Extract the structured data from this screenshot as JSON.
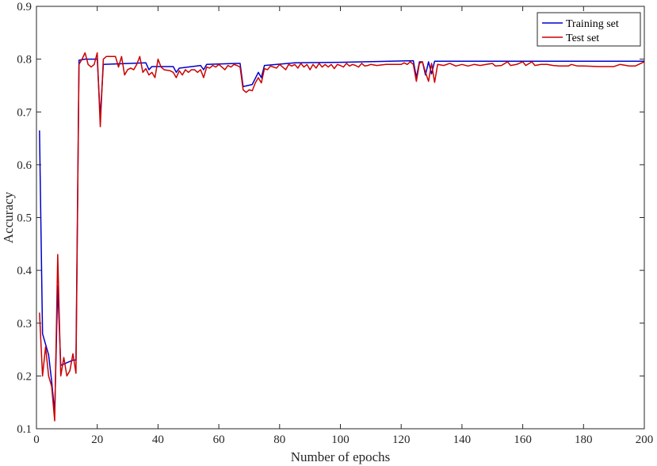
{
  "chart_data": {
    "type": "line",
    "xlabel": "Number of epochs",
    "ylabel": "Accuracy",
    "xlim": [
      0,
      200
    ],
    "ylim": [
      0.1,
      0.9
    ],
    "xticks": [
      0,
      20,
      40,
      60,
      80,
      100,
      120,
      140,
      160,
      180,
      200
    ],
    "yticks": [
      0.1,
      0.2,
      0.3,
      0.4,
      0.5,
      0.6,
      0.7,
      0.8,
      0.9
    ],
    "grid": false,
    "legend_position": "top-right",
    "series": [
      {
        "name": "Training set",
        "color": "#0000cc",
        "points": [
          [
            1,
            0.665
          ],
          [
            2,
            0.28
          ],
          [
            3,
            0.26
          ],
          [
            4,
            0.24
          ],
          [
            5,
            0.19
          ],
          [
            6,
            0.13
          ],
          [
            7,
            0.37
          ],
          [
            8,
            0.22
          ],
          [
            10,
            0.225
          ],
          [
            12,
            0.23
          ],
          [
            13,
            0.23
          ],
          [
            14,
            0.798
          ],
          [
            16,
            0.8
          ],
          [
            20,
            0.8
          ],
          [
            21,
            0.69
          ],
          [
            22,
            0.79
          ],
          [
            36,
            0.793
          ],
          [
            37,
            0.78
          ],
          [
            38,
            0.786
          ],
          [
            45,
            0.786
          ],
          [
            46,
            0.775
          ],
          [
            47,
            0.783
          ],
          [
            54,
            0.788
          ],
          [
            55,
            0.78
          ],
          [
            56,
            0.79
          ],
          [
            66,
            0.792
          ],
          [
            67,
            0.792
          ],
          [
            68,
            0.748
          ],
          [
            71,
            0.752
          ],
          [
            73,
            0.775
          ],
          [
            74,
            0.765
          ],
          [
            75,
            0.788
          ],
          [
            85,
            0.793
          ],
          [
            100,
            0.794
          ],
          [
            124,
            0.797
          ],
          [
            125,
            0.765
          ],
          [
            126,
            0.795
          ],
          [
            127,
            0.795
          ],
          [
            128,
            0.77
          ],
          [
            129,
            0.795
          ],
          [
            130,
            0.772
          ],
          [
            131,
            0.796
          ],
          [
            200,
            0.796
          ]
        ]
      },
      {
        "name": "Test set",
        "color": "#cc0000",
        "points": [
          [
            1,
            0.32
          ],
          [
            2,
            0.2
          ],
          [
            3,
            0.255
          ],
          [
            4,
            0.2
          ],
          [
            5,
            0.18
          ],
          [
            6,
            0.115
          ],
          [
            7,
            0.43
          ],
          [
            8,
            0.2
          ],
          [
            9,
            0.235
          ],
          [
            10,
            0.2
          ],
          [
            11,
            0.21
          ],
          [
            12,
            0.242
          ],
          [
            13,
            0.205
          ],
          [
            14,
            0.79
          ],
          [
            15,
            0.8
          ],
          [
            16,
            0.812
          ],
          [
            17,
            0.79
          ],
          [
            18,
            0.785
          ],
          [
            19,
            0.79
          ],
          [
            20,
            0.812
          ],
          [
            21,
            0.672
          ],
          [
            22,
            0.8
          ],
          [
            23,
            0.805
          ],
          [
            26,
            0.805
          ],
          [
            27,
            0.785
          ],
          [
            28,
            0.805
          ],
          [
            29,
            0.77
          ],
          [
            30,
            0.78
          ],
          [
            31,
            0.783
          ],
          [
            32,
            0.78
          ],
          [
            33,
            0.79
          ],
          [
            34,
            0.805
          ],
          [
            35,
            0.775
          ],
          [
            36,
            0.782
          ],
          [
            37,
            0.77
          ],
          [
            38,
            0.775
          ],
          [
            39,
            0.765
          ],
          [
            40,
            0.8
          ],
          [
            41,
            0.785
          ],
          [
            42,
            0.78
          ],
          [
            44,
            0.778
          ],
          [
            45,
            0.775
          ],
          [
            46,
            0.765
          ],
          [
            47,
            0.778
          ],
          [
            48,
            0.77
          ],
          [
            49,
            0.78
          ],
          [
            50,
            0.775
          ],
          [
            51,
            0.78
          ],
          [
            52,
            0.78
          ],
          [
            53,
            0.775
          ],
          [
            54,
            0.78
          ],
          [
            55,
            0.765
          ],
          [
            56,
            0.785
          ],
          [
            57,
            0.783
          ],
          [
            58,
            0.788
          ],
          [
            59,
            0.785
          ],
          [
            60,
            0.79
          ],
          [
            61,
            0.785
          ],
          [
            62,
            0.78
          ],
          [
            63,
            0.788
          ],
          [
            64,
            0.785
          ],
          [
            65,
            0.79
          ],
          [
            66,
            0.788
          ],
          [
            67,
            0.785
          ],
          [
            68,
            0.742
          ],
          [
            69,
            0.737
          ],
          [
            70,
            0.742
          ],
          [
            71,
            0.74
          ],
          [
            72,
            0.755
          ],
          [
            73,
            0.765
          ],
          [
            74,
            0.755
          ],
          [
            75,
            0.782
          ],
          [
            76,
            0.78
          ],
          [
            77,
            0.787
          ],
          [
            78,
            0.785
          ],
          [
            79,
            0.783
          ],
          [
            80,
            0.79
          ],
          [
            81,
            0.785
          ],
          [
            82,
            0.78
          ],
          [
            83,
            0.79
          ],
          [
            84,
            0.787
          ],
          [
            85,
            0.79
          ],
          [
            86,
            0.783
          ],
          [
            87,
            0.792
          ],
          [
            88,
            0.785
          ],
          [
            89,
            0.79
          ],
          [
            90,
            0.78
          ],
          [
            91,
            0.79
          ],
          [
            92,
            0.783
          ],
          [
            93,
            0.792
          ],
          [
            94,
            0.785
          ],
          [
            95,
            0.79
          ],
          [
            96,
            0.785
          ],
          [
            97,
            0.79
          ],
          [
            98,
            0.782
          ],
          [
            99,
            0.79
          ],
          [
            100,
            0.788
          ],
          [
            101,
            0.785
          ],
          [
            102,
            0.792
          ],
          [
            103,
            0.787
          ],
          [
            104,
            0.79
          ],
          [
            105,
            0.788
          ],
          [
            106,
            0.785
          ],
          [
            107,
            0.792
          ],
          [
            108,
            0.787
          ],
          [
            109,
            0.788
          ],
          [
            110,
            0.79
          ],
          [
            112,
            0.788
          ],
          [
            115,
            0.79
          ],
          [
            118,
            0.79
          ],
          [
            120,
            0.79
          ],
          [
            121,
            0.793
          ],
          [
            122,
            0.79
          ],
          [
            123,
            0.795
          ],
          [
            124,
            0.79
          ],
          [
            125,
            0.758
          ],
          [
            126,
            0.792
          ],
          [
            127,
            0.795
          ],
          [
            128,
            0.775
          ],
          [
            129,
            0.758
          ],
          [
            130,
            0.792
          ],
          [
            131,
            0.756
          ],
          [
            132,
            0.79
          ],
          [
            134,
            0.788
          ],
          [
            136,
            0.792
          ],
          [
            138,
            0.787
          ],
          [
            140,
            0.79
          ],
          [
            142,
            0.787
          ],
          [
            144,
            0.79
          ],
          [
            146,
            0.788
          ],
          [
            148,
            0.79
          ],
          [
            150,
            0.792
          ],
          [
            151,
            0.787
          ],
          [
            153,
            0.788
          ],
          [
            155,
            0.795
          ],
          [
            156,
            0.788
          ],
          [
            158,
            0.79
          ],
          [
            160,
            0.795
          ],
          [
            161,
            0.788
          ],
          [
            163,
            0.795
          ],
          [
            164,
            0.788
          ],
          [
            166,
            0.79
          ],
          [
            168,
            0.79
          ],
          [
            170,
            0.788
          ],
          [
            172,
            0.787
          ],
          [
            175,
            0.787
          ],
          [
            176,
            0.79
          ],
          [
            178,
            0.787
          ],
          [
            180,
            0.787
          ],
          [
            185,
            0.786
          ],
          [
            190,
            0.786
          ],
          [
            192,
            0.79
          ],
          [
            195,
            0.787
          ],
          [
            197,
            0.787
          ],
          [
            200,
            0.795
          ]
        ]
      }
    ]
  }
}
